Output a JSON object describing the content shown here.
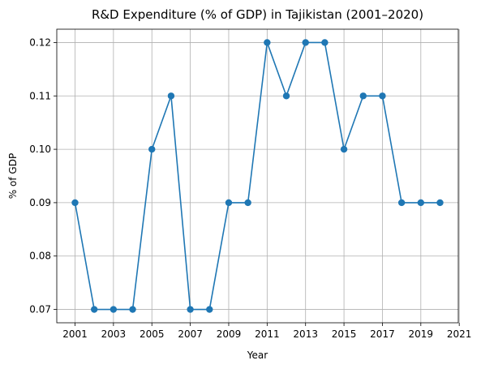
{
  "chart_data": {
    "type": "line",
    "title": "R&D Expenditure (% of GDP) in Tajikistan (2001–2020)",
    "xlabel": "Year",
    "ylabel": "% of GDP",
    "x": [
      2001,
      2002,
      2003,
      2004,
      2005,
      2006,
      2007,
      2008,
      2009,
      2010,
      2011,
      2012,
      2013,
      2014,
      2015,
      2016,
      2017,
      2018,
      2019,
      2020
    ],
    "series": [
      {
        "values": [
          0.09,
          0.07,
          0.07,
          0.07,
          0.1,
          0.11,
          0.07,
          0.07,
          0.09,
          0.09,
          0.12,
          0.11,
          0.12,
          0.12,
          0.1,
          0.11,
          0.11,
          0.09,
          0.09,
          0.09
        ],
        "color": "#1f77b4",
        "marker": "circle"
      }
    ],
    "xlim": [
      2000.05,
      2020.95
    ],
    "ylim": [
      0.0675,
      0.1225
    ],
    "x_ticks": [
      "2001",
      "2003",
      "2005",
      "2007",
      "2009",
      "2011",
      "2013",
      "2015",
      "2017",
      "2019",
      "2021"
    ],
    "y_ticks": [
      "0.07",
      "0.08",
      "0.09",
      "0.10",
      "0.11",
      "0.12"
    ],
    "grid": true,
    "legend": "none"
  }
}
